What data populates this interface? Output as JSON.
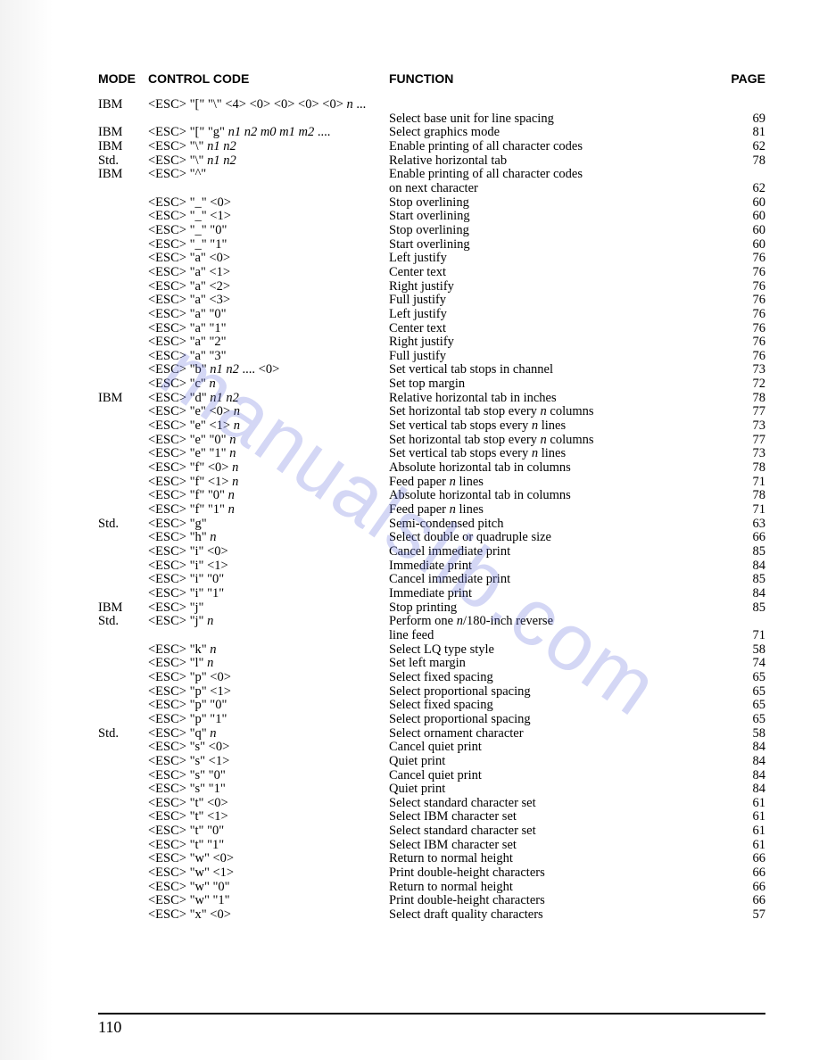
{
  "header": {
    "mode": "MODE",
    "code": "CONTROL CODE",
    "func": "FUNCTION",
    "page": "PAGE"
  },
  "watermark": "manualslib.com",
  "page_number": "110",
  "rows": [
    {
      "mode": "IBM",
      "code": "<ESC> \"[\" \"\\\" <4> <0> <0> <0> <0> n ...",
      "func": "",
      "page": ""
    },
    {
      "mode": "",
      "code": "",
      "func": "Select base unit for line spacing",
      "page": "69"
    },
    {
      "mode": "IBM",
      "code": "<ESC> \"[\" \"g\" n1 n2 m0 m1 m2 ....",
      "func": "Select graphics mode",
      "page": "81"
    },
    {
      "mode": "IBM",
      "code": "<ESC> \"\\\" n1 n2",
      "func": "Enable printing of all character codes",
      "page": "62"
    },
    {
      "mode": "Std.",
      "code": "<ESC> \"\\\" n1 n2",
      "func": "Relative horizontal tab",
      "page": "78"
    },
    {
      "mode": "IBM",
      "code": "<ESC> \"^\"",
      "func": "Enable printing of all character codes",
      "page": ""
    },
    {
      "mode": "",
      "code": "",
      "func": "on next character",
      "page": "62"
    },
    {
      "mode": "",
      "code": "<ESC> \"_\" <0>",
      "func": "Stop overlining",
      "page": "60"
    },
    {
      "mode": "",
      "code": "<ESC> \"_\" <1>",
      "func": "Start overlining",
      "page": "60"
    },
    {
      "mode": "",
      "code": "<ESC> \"_\" \"0\"",
      "func": "Stop overlining",
      "page": "60"
    },
    {
      "mode": "",
      "code": "<ESC> \"_\" \"1\"",
      "func": "Start overlining",
      "page": "60"
    },
    {
      "mode": "",
      "code": "<ESC> \"a\" <0>",
      "func": "Left justify",
      "page": "76"
    },
    {
      "mode": "",
      "code": "<ESC> \"a\" <1>",
      "func": "Center text",
      "page": "76"
    },
    {
      "mode": "",
      "code": "<ESC> \"a\" <2>",
      "func": "Right justify",
      "page": "76"
    },
    {
      "mode": "",
      "code": "<ESC> \"a\" <3>",
      "func": "Full justify",
      "page": "76"
    },
    {
      "mode": "",
      "code": "<ESC> \"a\" \"0\"",
      "func": "Left justify",
      "page": "76"
    },
    {
      "mode": "",
      "code": "<ESC> \"a\" \"1\"",
      "func": "Center text",
      "page": "76"
    },
    {
      "mode": "",
      "code": "<ESC> \"a\" \"2\"",
      "func": "Right justify",
      "page": "76"
    },
    {
      "mode": "",
      "code": "<ESC> \"a\" \"3\"",
      "func": "Full justify",
      "page": "76"
    },
    {
      "mode": "",
      "code": "<ESC> \"b\" n1 n2 .... <0>",
      "func": "Set vertical tab stops in channel",
      "page": "73"
    },
    {
      "mode": "",
      "code": "<ESC> \"c\" n",
      "func": "Set top margin",
      "page": "72"
    },
    {
      "mode": "IBM",
      "code": "<ESC> \"d\" n1 n2",
      "func": "Relative horizontal tab in inches",
      "page": "78"
    },
    {
      "mode": "",
      "code": "<ESC> \"e\" <0> n",
      "func": "Set horizontal tab stop every n columns",
      "page": "77"
    },
    {
      "mode": "",
      "code": "<ESC> \"e\" <1> n",
      "func": "Set vertical tab stops every n lines",
      "page": "73"
    },
    {
      "mode": "",
      "code": "<ESC> \"e\" \"0\" n",
      "func": "Set horizontal tab stop every n columns",
      "page": "77"
    },
    {
      "mode": "",
      "code": "<ESC> \"e\" \"1\" n",
      "func": "Set vertical tab stops every n lines",
      "page": "73"
    },
    {
      "mode": "",
      "code": "<ESC> \"f\" <0> n",
      "func": "Absolute horizontal tab in columns",
      "page": "78"
    },
    {
      "mode": "",
      "code": "<ESC> \"f\" <1> n",
      "func": "Feed paper n lines",
      "page": "71"
    },
    {
      "mode": "",
      "code": "<ESC> \"f\" \"0\" n",
      "func": "Absolute horizontal tab in columns",
      "page": "78"
    },
    {
      "mode": "",
      "code": "<ESC> \"f\" \"1\" n",
      "func": "Feed paper n lines",
      "page": "71"
    },
    {
      "mode": "Std.",
      "code": "<ESC> \"g\"",
      "func": "Semi-condensed pitch",
      "page": "63"
    },
    {
      "mode": "",
      "code": "<ESC> \"h\" n",
      "func": "Select double or quadruple size",
      "page": "66"
    },
    {
      "mode": "",
      "code": "<ESC> \"i\" <0>",
      "func": "Cancel immediate print",
      "page": "85"
    },
    {
      "mode": "",
      "code": "<ESC> \"i\" <1>",
      "func": "Immediate print",
      "page": "84"
    },
    {
      "mode": "",
      "code": "<ESC> \"i\" \"0\"",
      "func": "Cancel immediate print",
      "page": "85"
    },
    {
      "mode": "",
      "code": "<ESC> \"i\" \"1\"",
      "func": "Immediate print",
      "page": "84"
    },
    {
      "mode": "IBM",
      "code": "<ESC> \"j\"",
      "func": "Stop printing",
      "page": "85"
    },
    {
      "mode": "Std.",
      "code": "<ESC> \"j\" n",
      "func": "Perform one n/180-inch reverse",
      "page": ""
    },
    {
      "mode": "",
      "code": "",
      "func": "line feed",
      "page": "71"
    },
    {
      "mode": "",
      "code": "<ESC> \"k\" n",
      "func": "Select LQ type style",
      "page": "58"
    },
    {
      "mode": "",
      "code": "<ESC> \"l\" n",
      "func": "Set left margin",
      "page": "74"
    },
    {
      "mode": "",
      "code": "<ESC> \"p\" <0>",
      "func": "Select fixed spacing",
      "page": "65"
    },
    {
      "mode": "",
      "code": "<ESC> \"p\" <1>",
      "func": "Select proportional spacing",
      "page": "65"
    },
    {
      "mode": "",
      "code": "<ESC> \"p\" \"0\"",
      "func": "Select fixed spacing",
      "page": "65"
    },
    {
      "mode": "",
      "code": "<ESC> \"p\" \"1\"",
      "func": "Select proportional spacing",
      "page": "65"
    },
    {
      "mode": "Std.",
      "code": "<ESC> \"q\" n",
      "func": "Select ornament character",
      "page": "58"
    },
    {
      "mode": "",
      "code": "<ESC> \"s\" <0>",
      "func": "Cancel quiet print",
      "page": "84"
    },
    {
      "mode": "",
      "code": "<ESC> \"s\" <1>",
      "func": "Quiet print",
      "page": "84"
    },
    {
      "mode": "",
      "code": "<ESC> \"s\" \"0\"",
      "func": "Cancel quiet print",
      "page": "84"
    },
    {
      "mode": "",
      "code": "<ESC> \"s\" \"1\"",
      "func": "Quiet print",
      "page": "84"
    },
    {
      "mode": "",
      "code": "<ESC> \"t\" <0>",
      "func": "Select standard character set",
      "page": "61"
    },
    {
      "mode": "",
      "code": "<ESC> \"t\" <1>",
      "func": "Select IBM character set",
      "page": "61"
    },
    {
      "mode": "",
      "code": "<ESC> \"t\" \"0\"",
      "func": "Select standard character set",
      "page": "61"
    },
    {
      "mode": "",
      "code": "<ESC> \"t\" \"1\"",
      "func": "Select IBM character set",
      "page": "61"
    },
    {
      "mode": "",
      "code": "<ESC> \"w\" <0>",
      "func": "Return to normal height",
      "page": "66"
    },
    {
      "mode": "",
      "code": "<ESC> \"w\" <1>",
      "func": "Print double-height characters",
      "page": "66"
    },
    {
      "mode": "",
      "code": "<ESC> \"w\" \"0\"",
      "func": "Return to normal height",
      "page": "66"
    },
    {
      "mode": "",
      "code": "<ESC> \"w\" \"1\"",
      "func": "Print double-height characters",
      "page": "66"
    },
    {
      "mode": "",
      "code": "<ESC> \"x\" <0>",
      "func": "Select draft quality characters",
      "page": "57"
    }
  ]
}
